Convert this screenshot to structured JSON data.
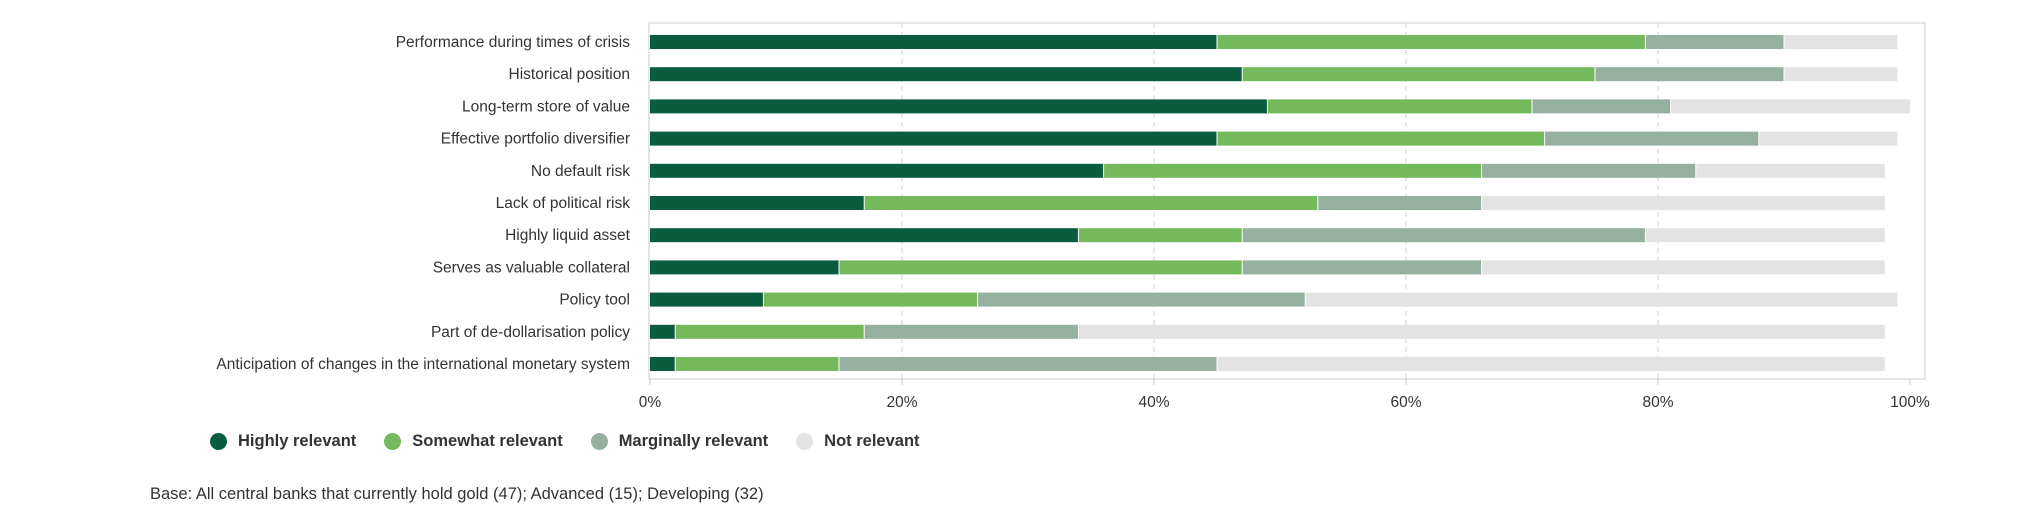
{
  "chart_data": {
    "type": "bar",
    "orientation": "horizontal",
    "stacked": true,
    "categories": [
      "Performance during times of crisis",
      "Historical position",
      "Long-term store of value",
      "Effective portfolio diversifier",
      "No default risk",
      "Lack of political risk",
      "Highly liquid asset",
      "Serves as valuable collateral",
      "Policy tool",
      "Part of de-dollarisation policy",
      "Anticipation of changes in the international monetary system"
    ],
    "series": [
      {
        "name": "Highly relevant",
        "color": "#0a5c3e",
        "values": [
          45,
          47,
          49,
          45,
          36,
          17,
          34,
          15,
          9,
          2,
          2
        ]
      },
      {
        "name": "Somewhat relevant",
        "color": "#74b95c",
        "values": [
          34,
          28,
          21,
          26,
          30,
          36,
          13,
          32,
          17,
          15,
          13
        ]
      },
      {
        "name": "Marginally relevant",
        "color": "#96b09f",
        "values": [
          11,
          15,
          11,
          17,
          17,
          13,
          32,
          19,
          26,
          17,
          30
        ]
      },
      {
        "name": "Not relevant",
        "color": "#e3e3e3",
        "values": [
          9,
          9,
          19,
          11,
          15,
          32,
          19,
          32,
          47,
          64,
          53
        ]
      }
    ],
    "xlim": [
      0,
      100
    ],
    "xticks": [
      "0%",
      "20%",
      "40%",
      "60%",
      "80%",
      "100%"
    ],
    "grid": true,
    "legend_position": "bottom-left"
  },
  "footnote": "Base: All central banks that currently hold gold (47); Advanced (15); Developing (32)"
}
